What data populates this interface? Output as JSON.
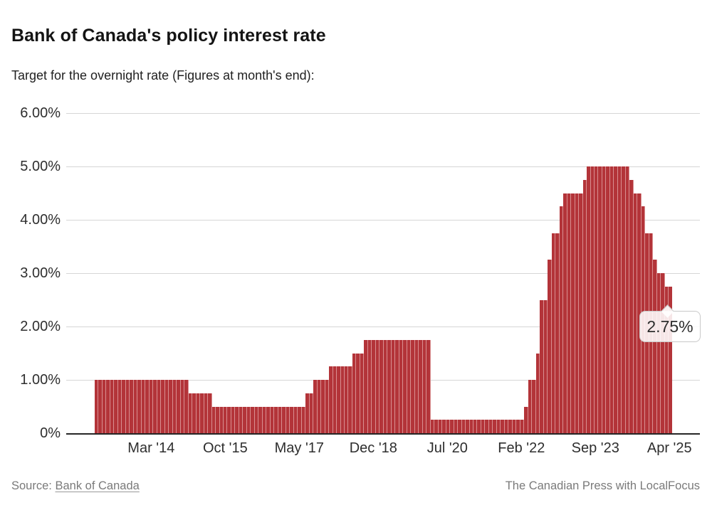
{
  "header": {
    "title": "Bank of Canada's policy interest rate",
    "subtitle": "Target for the overnight rate (Figures at month's end):"
  },
  "chart_data": {
    "type": "bar",
    "title": "Bank of Canada's policy interest rate",
    "subtitle": "Target for the overnight rate (Figures at month's end):",
    "unit": "percent",
    "x_frequency": "monthly",
    "x_start": "2013-01",
    "x_end": "2025-04",
    "ylim": [
      0,
      6
    ],
    "grid": true,
    "y_ticks": [
      {
        "value": 6,
        "label": "6.00%"
      },
      {
        "value": 5,
        "label": "5.00%"
      },
      {
        "value": 4,
        "label": "4.00%"
      },
      {
        "value": 3,
        "label": "3.00%"
      },
      {
        "value": 2,
        "label": "2.00%"
      },
      {
        "value": 1,
        "label": "1.00%"
      },
      {
        "value": 0,
        "label": "0%"
      }
    ],
    "x_ticks": [
      {
        "index": 14,
        "label": "Mar '14"
      },
      {
        "index": 33,
        "label": "Oct '15"
      },
      {
        "index": 52,
        "label": "May '17"
      },
      {
        "index": 71,
        "label": "Dec '18"
      },
      {
        "index": 90,
        "label": "Jul '20"
      },
      {
        "index": 109,
        "label": "Feb '22"
      },
      {
        "index": 128,
        "label": "Sep '23"
      },
      {
        "index": 147,
        "label": "Apr '25"
      }
    ],
    "values": [
      1,
      1,
      1,
      1,
      1,
      1,
      1,
      1,
      1,
      1,
      1,
      1,
      1,
      1,
      1,
      1,
      1,
      1,
      1,
      1,
      1,
      1,
      1,
      1,
      0.75,
      0.75,
      0.75,
      0.75,
      0.75,
      0.75,
      0.5,
      0.5,
      0.5,
      0.5,
      0.5,
      0.5,
      0.5,
      0.5,
      0.5,
      0.5,
      0.5,
      0.5,
      0.5,
      0.5,
      0.5,
      0.5,
      0.5,
      0.5,
      0.5,
      0.5,
      0.5,
      0.5,
      0.5,
      0.5,
      0.75,
      0.75,
      1,
      1,
      1,
      1,
      1.25,
      1.25,
      1.25,
      1.25,
      1.25,
      1.25,
      1.5,
      1.5,
      1.5,
      1.75,
      1.75,
      1.75,
      1.75,
      1.75,
      1.75,
      1.75,
      1.75,
      1.75,
      1.75,
      1.75,
      1.75,
      1.75,
      1.75,
      1.75,
      1.75,
      1.75,
      0.25,
      0.25,
      0.25,
      0.25,
      0.25,
      0.25,
      0.25,
      0.25,
      0.25,
      0.25,
      0.25,
      0.25,
      0.25,
      0.25,
      0.25,
      0.25,
      0.25,
      0.25,
      0.25,
      0.25,
      0.25,
      0.25,
      0.25,
      0.25,
      0.5,
      1,
      1,
      1.5,
      2.5,
      2.5,
      3.25,
      3.75,
      3.75,
      4.25,
      4.5,
      4.5,
      4.5,
      4.5,
      4.5,
      4.75,
      5,
      5,
      5,
      5,
      5,
      5,
      5,
      5,
      5,
      5,
      5,
      4.75,
      4.5,
      4.5,
      4.25,
      3.75,
      3.75,
      3.25,
      3,
      3,
      2.75,
      2.75
    ],
    "annotation": {
      "label": "2.75%",
      "month": "2025-04",
      "value": 2.75
    },
    "colors": {
      "bar": "#b33439",
      "bar_separator": "#d98f91",
      "grid": "#d6d6d6",
      "axis": "#262626"
    }
  },
  "footer": {
    "source_label": "Source:",
    "source_link": "Bank of Canada",
    "credit": "The Canadian Press with LocalFocus"
  }
}
